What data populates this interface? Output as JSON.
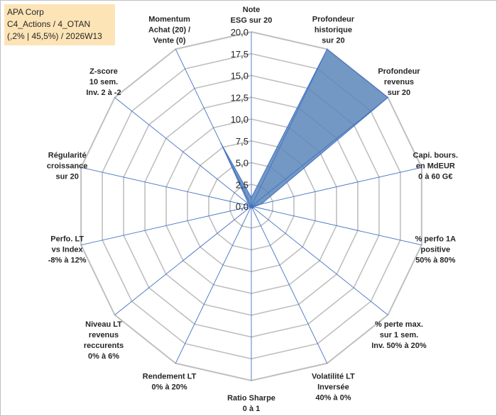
{
  "chart_data": {
    "type": "radar",
    "title_lines": [
      "APA Corp",
      "C4_Actions / 4_OTAN",
      "(,2% | 45,5%) / 2026W13"
    ],
    "r_ticks": [
      "0,0",
      "2,5",
      "5,0",
      "7,5",
      "10,0",
      "12,5",
      "15,0",
      "17,5",
      "20,0"
    ],
    "r_range": [
      0,
      20
    ],
    "grid": true,
    "axes": [
      {
        "label": [
          "Note",
          "ESG sur 20"
        ],
        "value": 1
      },
      {
        "label": [
          "Profondeur",
          "historique",
          "sur 20"
        ],
        "value": 20
      },
      {
        "label": [
          "Profondeur",
          "revenus",
          "sur 20"
        ],
        "value": 20
      },
      {
        "label": [
          "Capi. bours.",
          "en MdEUR",
          "0 à 60 G€"
        ],
        "value": 1.2
      },
      {
        "label": [
          "% perfo 1A",
          "positive",
          "50% à 80%"
        ],
        "value": 0
      },
      {
        "label": [
          "% perte max.",
          "sur 1 sem.",
          "Inv. 50% à 20%"
        ],
        "value": 0
      },
      {
        "label": [
          "Volatilité LT",
          "Inversée",
          "40% à 0%"
        ],
        "value": 0
      },
      {
        "label": [
          "Ratio Sharpe",
          "0 à 1"
        ],
        "value": 0
      },
      {
        "label": [
          "Rendement LT",
          "0% à 20%"
        ],
        "value": 0
      },
      {
        "label": [
          "Niveau LT",
          "revenus",
          "reccurents",
          "0% à 6%"
        ],
        "value": 0
      },
      {
        "label": [
          "Perfo. LT",
          "vs Index",
          "-8% à 12%"
        ],
        "value": 0
      },
      {
        "label": [
          "Régularité",
          "croissance",
          "sur 20"
        ],
        "value": 0
      },
      {
        "label": [
          "Z-score",
          "10 sem.",
          "Inv. 2 à -2"
        ],
        "value": 0
      },
      {
        "label": [
          "Momentum",
          "Achat (20) /",
          "Vente (0)"
        ],
        "value": 8
      }
    ],
    "series": [
      {
        "values": [
          1,
          20,
          20,
          1.2,
          0.3,
          0.3,
          0.2,
          0.1,
          0.2,
          0.2,
          0.1,
          0.2,
          0.4,
          8
        ]
      }
    ],
    "colors": {
      "fill": "#5b86ba",
      "line": "#4472c4",
      "grid": "#bfbfbf",
      "axis": "#4472c4",
      "title_bg": "#fce4b6"
    }
  }
}
